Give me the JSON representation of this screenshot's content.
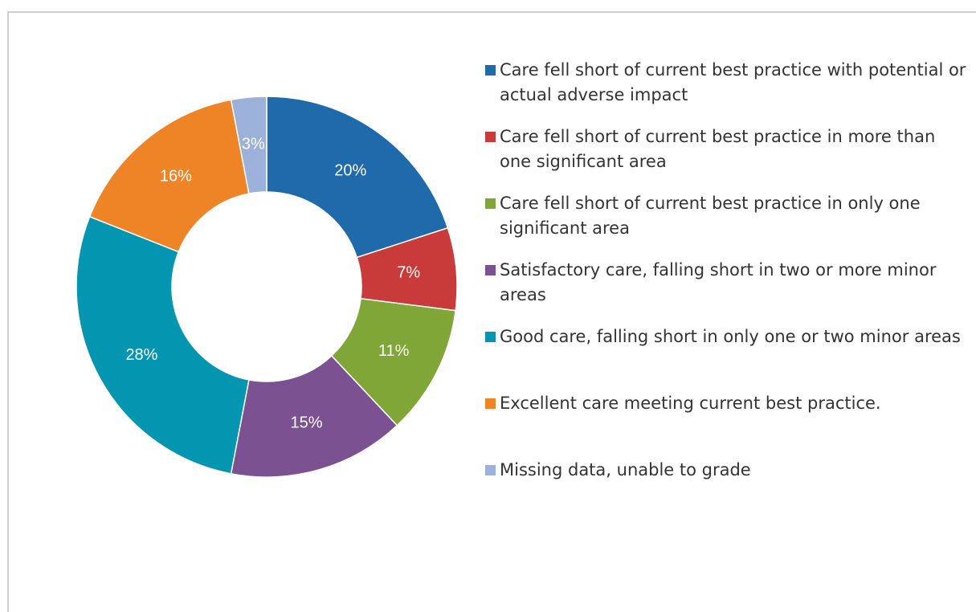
{
  "chart_data": {
    "type": "pie",
    "categories": [
      "Care fell short of current best practice with potential or actual adverse impact",
      "Care fell short of current best practice in more than one significant area",
      "Care fell short of current best practice in only one significant area",
      "Satisfactory care, falling short in two or more minor areas",
      "Good care, falling short in only one or two minor areas",
      "Excellent care meeting current best practice.",
      "Missing data, unable to grade"
    ],
    "values": [
      20,
      7,
      11,
      15,
      28,
      16,
      3
    ],
    "value_labels": [
      "20%",
      "7%",
      "11%",
      "15%",
      "28%",
      "16%",
      "3%"
    ],
    "colors": [
      "#1f6aab",
      "#c93b3a",
      "#80a637",
      "#7b5191",
      "#0495b1",
      "#ef8427",
      "#9bb1da"
    ],
    "legend": "right"
  }
}
